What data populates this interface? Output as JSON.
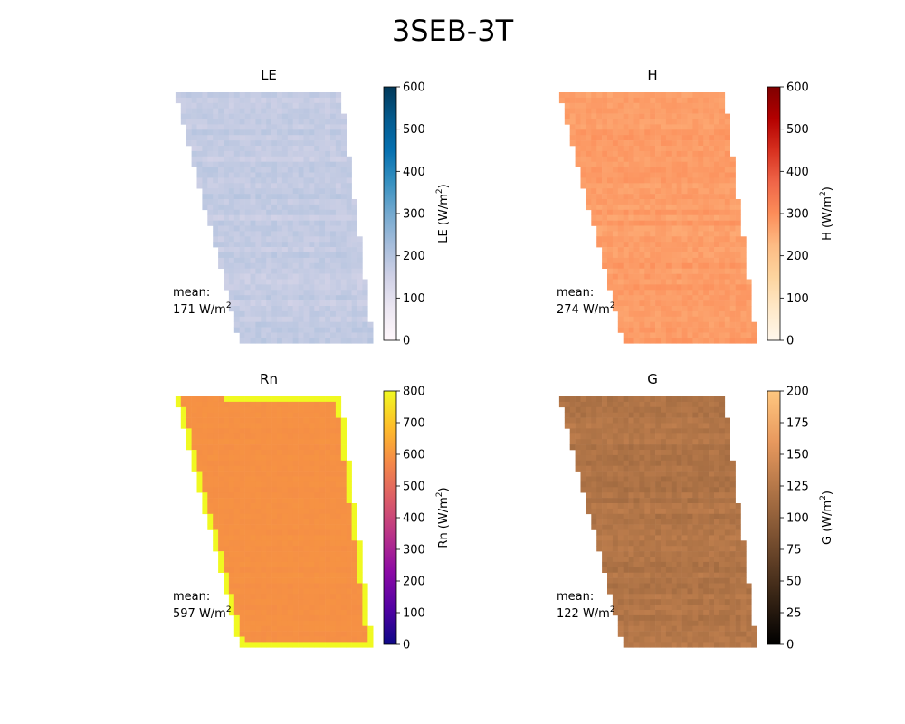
{
  "figure": {
    "title": "3SEB-3T"
  },
  "chart_data": [
    {
      "type": "heatmap",
      "title": "LE",
      "colorbar_label": "LE (W/m",
      "colorbar_label_sup": "2",
      "colorbar_label_end": ")",
      "colormap": [
        "#fff7fb",
        "#ece7f2",
        "#d0d1e6",
        "#a6bddb",
        "#74a9cf",
        "#3690c0",
        "#0570b0",
        "#045a8d",
        "#023858"
      ],
      "vmin": 0,
      "vmax": 600,
      "ticks": [
        0,
        100,
        200,
        300,
        400,
        500,
        600
      ],
      "mean_label": "mean:",
      "mean_value": "171 W/m",
      "mean_sup": "2",
      "field": {
        "base": 171,
        "spread": 30,
        "edge": null
      }
    },
    {
      "type": "heatmap",
      "title": "H",
      "colorbar_label": "H (W/m",
      "colorbar_label_sup": "2",
      "colorbar_label_end": ")",
      "colormap": [
        "#fff7ec",
        "#fee8c8",
        "#fdd49e",
        "#fdbb84",
        "#fc8d59",
        "#ef6548",
        "#d7301f",
        "#b30000",
        "#7f0000"
      ],
      "vmin": 0,
      "vmax": 600,
      "ticks": [
        0,
        100,
        200,
        300,
        400,
        500,
        600
      ],
      "mean_label": "mean:",
      "mean_value": "274 W/m",
      "mean_sup": "2",
      "field": {
        "base": 274,
        "spread": 25,
        "edge": null
      }
    },
    {
      "type": "heatmap",
      "title": "Rn",
      "colorbar_label": "Rn (W/m",
      "colorbar_label_sup": "2",
      "colorbar_label_end": ")",
      "colormap": [
        "#0d0887",
        "#5302a3",
        "#8b0aa5",
        "#b83289",
        "#db5c68",
        "#f48849",
        "#febd2a",
        "#f0f921"
      ],
      "vmin": 0,
      "vmax": 800,
      "ticks": [
        0,
        100,
        200,
        300,
        400,
        500,
        600,
        700,
        800
      ],
      "mean_label": "mean:",
      "mean_value": "597 W/m",
      "mean_sup": "2",
      "field": {
        "base": 590,
        "spread": 8,
        "edge": 800
      }
    },
    {
      "type": "heatmap",
      "title": "G",
      "colorbar_label": "G (W/m",
      "colorbar_label_sup": "2",
      "colorbar_label_end": ")",
      "colormap": [
        "#000000",
        "#3a2616",
        "#744c2e",
        "#ae7346",
        "#e8995e",
        "#ffc77f"
      ],
      "vmin": 0,
      "vmax": 200,
      "ticks": [
        0,
        25,
        50,
        75,
        100,
        125,
        150,
        175,
        200
      ],
      "mean_label": "mean:",
      "mean_value": "122 W/m",
      "mean_sup": "2",
      "field": {
        "base": 122,
        "spread": 12,
        "edge": null
      }
    }
  ]
}
